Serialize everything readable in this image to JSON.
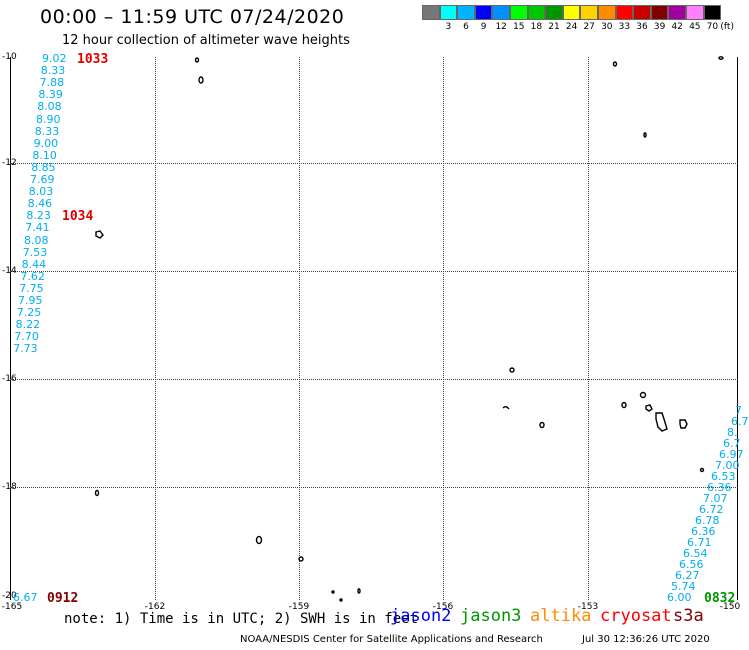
{
  "header": {
    "title": "00:00 – 11:59 UTC 07/24/2020",
    "subtitle": "12 hour collection of altimeter wave heights"
  },
  "legend": {
    "unit_label": "(ft)",
    "levels": [
      {
        "label": "",
        "color": "#777777"
      },
      {
        "label": "3",
        "color": "#00ffff"
      },
      {
        "label": "6",
        "color": "#00b4ff"
      },
      {
        "label": "9",
        "color": "#0000ff"
      },
      {
        "label": "12",
        "color": "#0090ff"
      },
      {
        "label": "15",
        "color": "#00ff00"
      },
      {
        "label": "18",
        "color": "#00c800"
      },
      {
        "label": "21",
        "color": "#009600"
      },
      {
        "label": "24",
        "color": "#ffff00"
      },
      {
        "label": "27",
        "color": "#ffd200"
      },
      {
        "label": "30",
        "color": "#ff8c00"
      },
      {
        "label": "33",
        "color": "#ff0000"
      },
      {
        "label": "36",
        "color": "#c80000"
      },
      {
        "label": "39",
        "color": "#800000"
      },
      {
        "label": "42",
        "color": "#a000a0"
      },
      {
        "label": "45",
        "color": "#ff80ff"
      },
      {
        "label": "70",
        "color": "#000000"
      }
    ]
  },
  "map": {
    "lat_labels": [
      "-10",
      "-12",
      "-14",
      "-16",
      "-18",
      "-20"
    ],
    "lon_labels": [
      "-165",
      "-162",
      "-159",
      "-156",
      "-153",
      "-150"
    ]
  },
  "tracks": {
    "left_column": [
      "9.02",
      "8.33",
      "7.88",
      "8.39",
      "8.08",
      "8.90",
      "8.33",
      "9.00",
      "8.10",
      "8.85",
      "7.69",
      "8.03",
      "8.46",
      "8.23",
      "7.41",
      "8.08",
      "7.53",
      "8.44",
      "7.62",
      "7.75",
      "7.95",
      "7.25",
      "8.22",
      "7.70",
      "7.73"
    ],
    "bottom_left_value": "6.67",
    "right_column": [
      "7",
      "6.7",
      "8.",
      "6.7",
      "6.97",
      "7.00",
      "6.53",
      "6.36",
      "7.07",
      "6.72",
      "6.78",
      "6.36",
      "6.71",
      "6.54",
      "6.56",
      "6.27",
      "5.74",
      "6.00"
    ],
    "time_labels": [
      {
        "text": "1033",
        "color": "#e00000"
      },
      {
        "text": "1034",
        "color": "#e00000"
      },
      {
        "text": "0912",
        "color": "#800000"
      },
      {
        "text": "0832",
        "color": "#009600"
      }
    ]
  },
  "footer": {
    "note": "note: 1) Time is in UTC; 2) SWH is in feet",
    "satellites": [
      {
        "name": "jason2",
        "color": "#0000ff"
      },
      {
        "name": "jason3",
        "color": "#009600"
      },
      {
        "name": "altika",
        "color": "#ff8c00"
      },
      {
        "name": "cryosat",
        "color": "#ff0000"
      },
      {
        "name": "s3a",
        "color": "#800000"
      }
    ],
    "credit": "NOAA/NESDIS Center for Satellite Applications and Research",
    "timestamp": "Jul 30 12:36:26 UTC 2020"
  }
}
